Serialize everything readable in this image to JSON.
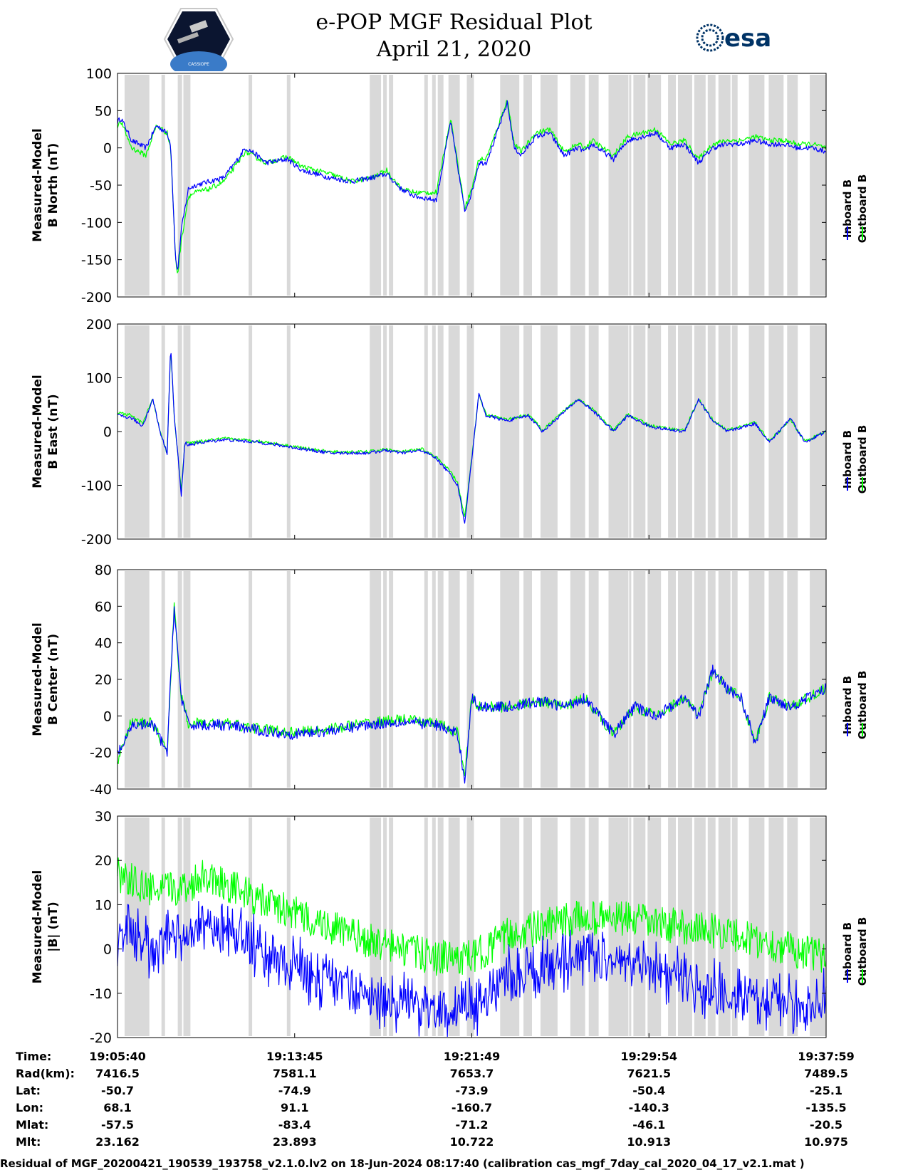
{
  "header": {
    "title": "e-POP MGF Residual Plot",
    "date": "April 21, 2020",
    "left_logo_text": "CASSIOPE",
    "right_logo_text": "esa"
  },
  "colors": {
    "inboard": "#0000ff",
    "outboard": "#00ff00",
    "gap": "#d9d9d9"
  },
  "chart_data": [
    {
      "type": "line",
      "ylabel": "Measured-Model\nB North (nT)",
      "ylim": [
        -200,
        100
      ],
      "yticks": [
        100,
        50,
        0,
        -50,
        -100,
        -150,
        -200
      ],
      "legend": [
        "Inboard B",
        "Outboard B"
      ],
      "legend_placement": "right",
      "x": [
        0,
        0.005,
        0.02,
        0.04,
        0.055,
        0.07,
        0.075,
        0.082,
        0.085,
        0.09,
        0.1,
        0.11,
        0.13,
        0.15,
        0.17,
        0.18,
        0.19,
        0.21,
        0.24,
        0.26,
        0.3,
        0.33,
        0.36,
        0.38,
        0.4,
        0.42,
        0.45,
        0.47,
        0.49,
        0.5,
        0.51,
        0.52,
        0.53,
        0.55,
        0.56,
        0.57,
        0.59,
        0.61,
        0.63,
        0.65,
        0.66,
        0.67,
        0.7,
        0.72,
        0.74,
        0.76,
        0.78,
        0.8,
        0.82,
        0.84,
        0.86,
        0.88,
        0.9,
        0.92,
        0.94,
        0.96,
        0.98,
        1.0
      ],
      "series": [
        {
          "name": "Inboard B",
          "values": [
            35,
            40,
            10,
            0,
            30,
            20,
            5,
            -150,
            -165,
            -110,
            -55,
            -50,
            -45,
            -40,
            -15,
            0,
            -5,
            -20,
            -15,
            -30,
            -40,
            -45,
            -40,
            -35,
            -55,
            -65,
            -70,
            35,
            -85,
            -60,
            -20,
            -20,
            5,
            60,
            0,
            -10,
            15,
            20,
            -10,
            0,
            -5,
            5,
            -15,
            10,
            15,
            20,
            0,
            5,
            -20,
            0,
            5,
            5,
            10,
            5,
            5,
            0,
            0,
            -5
          ]
        },
        {
          "name": "Outboard B",
          "values": [
            30,
            35,
            0,
            -10,
            30,
            20,
            0,
            -150,
            -170,
            -125,
            -65,
            -60,
            -55,
            -45,
            -20,
            -5,
            -10,
            -20,
            -12,
            -25,
            -35,
            -45,
            -40,
            -30,
            -55,
            -60,
            -60,
            40,
            -80,
            -55,
            -15,
            -15,
            10,
            65,
            5,
            -5,
            20,
            25,
            -5,
            5,
            0,
            10,
            -10,
            15,
            20,
            25,
            5,
            10,
            -15,
            5,
            10,
            10,
            15,
            10,
            10,
            5,
            5,
            0
          ]
        }
      ]
    },
    {
      "type": "line",
      "ylabel": "Measured-Model\nB East (nT)",
      "ylim": [
        -200,
        200
      ],
      "yticks": [
        200,
        100,
        0,
        -100,
        -200
      ],
      "legend": [
        "Inboard B",
        "Outboard B"
      ],
      "legend_placement": "right",
      "x": [
        0,
        0.02,
        0.035,
        0.05,
        0.06,
        0.07,
        0.075,
        0.08,
        0.085,
        0.09,
        0.095,
        0.1,
        0.12,
        0.15,
        0.2,
        0.25,
        0.3,
        0.35,
        0.38,
        0.4,
        0.43,
        0.45,
        0.47,
        0.48,
        0.49,
        0.5,
        0.51,
        0.52,
        0.55,
        0.58,
        0.6,
        0.65,
        0.67,
        0.7,
        0.72,
        0.75,
        0.77,
        0.8,
        0.82,
        0.84,
        0.86,
        0.9,
        0.92,
        0.95,
        0.97,
        1.0
      ],
      "series": [
        {
          "name": "Inboard B",
          "values": [
            30,
            25,
            10,
            60,
            0,
            -40,
            160,
            30,
            -40,
            -120,
            -20,
            -25,
            -20,
            -15,
            -20,
            -30,
            -40,
            -40,
            -35,
            -40,
            -35,
            -50,
            -80,
            -100,
            -170,
            -50,
            70,
            30,
            20,
            30,
            0,
            60,
            40,
            0,
            30,
            10,
            5,
            0,
            60,
            20,
            0,
            15,
            -20,
            25,
            -20,
            0
          ]
        },
        {
          "name": "Outboard B",
          "values": [
            35,
            30,
            15,
            60,
            0,
            -40,
            155,
            30,
            -40,
            -110,
            -20,
            -22,
            -18,
            -13,
            -18,
            -28,
            -38,
            -38,
            -33,
            -38,
            -33,
            -48,
            -75,
            -95,
            -160,
            -48,
            70,
            32,
            22,
            32,
            2,
            62,
            42,
            2,
            32,
            12,
            7,
            2,
            60,
            22,
            2,
            17,
            -18,
            22,
            -18,
            0
          ]
        }
      ]
    },
    {
      "type": "line",
      "ylabel": "Measured-Model\nB Center (nT)",
      "ylim": [
        -40,
        80
      ],
      "yticks": [
        80,
        60,
        40,
        20,
        0,
        -20,
        -40
      ],
      "legend": [
        "Inboard B",
        "Outboard B"
      ],
      "legend_placement": "right",
      "x": [
        0,
        0.01,
        0.02,
        0.03,
        0.05,
        0.07,
        0.08,
        0.09,
        0.1,
        0.15,
        0.2,
        0.25,
        0.3,
        0.35,
        0.4,
        0.45,
        0.48,
        0.49,
        0.5,
        0.51,
        0.52,
        0.55,
        0.6,
        0.63,
        0.66,
        0.7,
        0.73,
        0.76,
        0.8,
        0.82,
        0.84,
        0.86,
        0.88,
        0.9,
        0.92,
        0.95,
        1.0
      ],
      "series": [
        {
          "name": "Inboard B",
          "values": [
            -20,
            -15,
            -5,
            -5,
            -5,
            -20,
            60,
            10,
            -5,
            -5,
            -8,
            -10,
            -8,
            -5,
            -3,
            -5,
            -10,
            -35,
            10,
            5,
            5,
            5,
            8,
            5,
            10,
            -10,
            5,
            0,
            10,
            0,
            25,
            15,
            10,
            -15,
            10,
            5,
            15
          ]
        },
        {
          "name": "Outboard B",
          "values": [
            -25,
            -12,
            -3,
            -4,
            -4,
            -20,
            60,
            10,
            -4,
            -4,
            -7,
            -9,
            -7,
            -4,
            -2,
            -4,
            -9,
            -33,
            10,
            5,
            5,
            5,
            8,
            5,
            10,
            -10,
            5,
            0,
            10,
            0,
            25,
            15,
            10,
            -15,
            10,
            5,
            15
          ]
        }
      ]
    },
    {
      "type": "line",
      "ylabel": "Measured-Model\n|B| (nT)",
      "ylim": [
        -20,
        30
      ],
      "yticks": [
        30,
        20,
        10,
        0,
        -10,
        -20
      ],
      "legend": [
        "Inboard B",
        "Outboard B"
      ],
      "legend_placement": "right",
      "x": [
        0,
        0.05,
        0.1,
        0.12,
        0.15,
        0.2,
        0.25,
        0.3,
        0.35,
        0.4,
        0.45,
        0.5,
        0.55,
        0.6,
        0.65,
        0.7,
        0.75,
        0.8,
        0.85,
        0.9,
        0.95,
        1.0
      ],
      "series": [
        {
          "name": "Inboard B",
          "values": [
            8,
            5,
            7,
            10,
            8,
            4,
            0,
            -3,
            -7,
            -8,
            -10,
            -9,
            -3,
            0,
            2,
            2,
            0,
            -3,
            -5,
            -7,
            -8,
            -8
          ]
        },
        {
          "name": "Outboard B",
          "values": [
            17,
            13,
            14,
            17,
            15,
            11,
            8,
            5,
            2,
            0,
            -2,
            -2,
            3,
            5,
            7,
            7,
            6,
            5,
            4,
            2,
            0,
            -2
          ]
        }
      ]
    }
  ],
  "info_table": {
    "row_labels": [
      "Time:",
      "Rad(km):",
      "Lat:",
      "Lon:",
      "Mlat:",
      "Mlt:"
    ],
    "columns": [
      [
        "19:05:40",
        "7416.5",
        "-50.7",
        "68.1",
        "-57.5",
        "23.162"
      ],
      [
        "19:13:45",
        "7581.1",
        "-74.9",
        "91.1",
        "-83.4",
        "23.893"
      ],
      [
        "19:21:49",
        "7653.7",
        "-73.9",
        "-160.7",
        "-71.2",
        "10.722"
      ],
      [
        "19:29:54",
        "7621.5",
        "-50.4",
        "-140.3",
        "-46.1",
        "10.913"
      ],
      [
        "19:37:59",
        "7489.5",
        "-25.1",
        "-135.5",
        "-20.5",
        "10.975"
      ]
    ]
  },
  "footer": "Residual of MGF_20200421_190539_193758_v2.1.0.lv2 on 18-Jun-2024 08:17:40 (calibration cas_mgf_7day_cal_2020_04_17_v2.1.mat )"
}
